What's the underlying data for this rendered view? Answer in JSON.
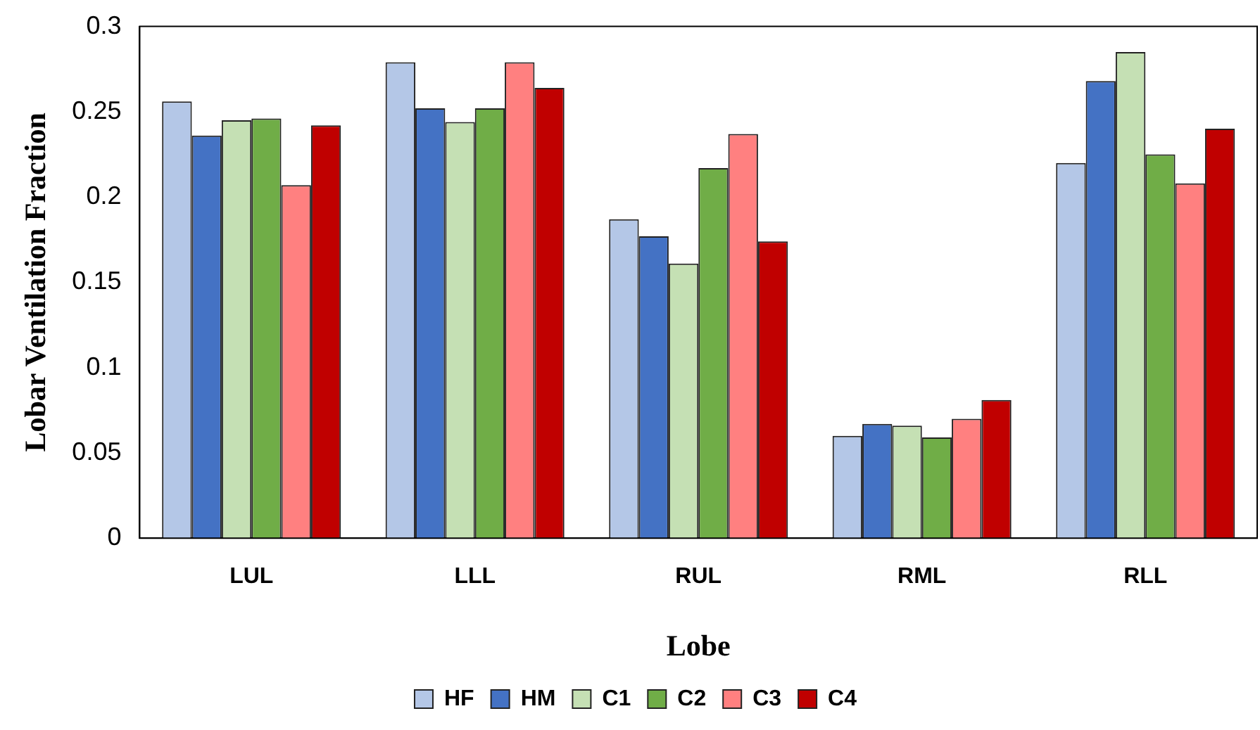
{
  "chart_data": {
    "type": "bar",
    "xlabel": "Lobe",
    "ylabel": "Lobar Ventilation Fraction",
    "categories": [
      "LUL",
      "LLL",
      "RUL",
      "RML",
      "RLL"
    ],
    "series": [
      {
        "name": "HF",
        "color": "#b4c7e7",
        "values": [
          0.256,
          0.279,
          0.187,
          0.06,
          0.22
        ]
      },
      {
        "name": "HM",
        "color": "#4472c4",
        "values": [
          0.236,
          0.252,
          0.177,
          0.067,
          0.268
        ]
      },
      {
        "name": "C1",
        "color": "#c5e0b4",
        "values": [
          0.245,
          0.244,
          0.161,
          0.066,
          0.285
        ]
      },
      {
        "name": "C2",
        "color": "#70ad47",
        "values": [
          0.246,
          0.252,
          0.217,
          0.059,
          0.225
        ]
      },
      {
        "name": "C3",
        "color": "#ff8080",
        "values": [
          0.207,
          0.279,
          0.237,
          0.07,
          0.208
        ]
      },
      {
        "name": "C4",
        "color": "#c00000",
        "values": [
          0.242,
          0.264,
          0.174,
          0.081,
          0.24
        ]
      }
    ],
    "ylim": [
      0,
      0.3
    ],
    "yticks": [
      0,
      0.05,
      0.1,
      0.15,
      0.2,
      0.25,
      0.3
    ],
    "grid": false,
    "legend": "bottom"
  }
}
